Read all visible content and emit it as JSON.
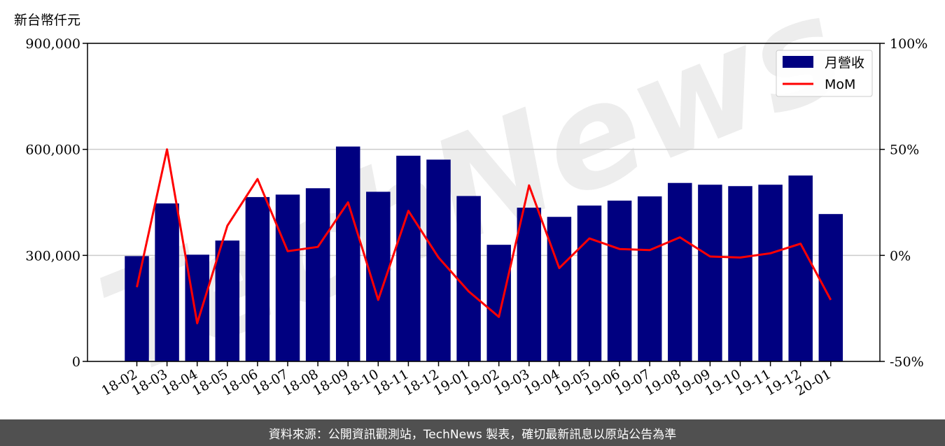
{
  "unit_label": "新台幣仟元",
  "footer_text": "資料來源：公開資訊觀測站，TechNews 製表，確切最新訊息以原站公告為準",
  "watermark_text": "TechNews",
  "colors": {
    "bar": "#000080",
    "line": "#ff0000",
    "footer_bg": "#505050"
  },
  "chart_data": {
    "type": "bar",
    "categories": [
      "18-02",
      "18-03",
      "18-04",
      "18-05",
      "18-06",
      "18-07",
      "18-08",
      "18-09",
      "18-10",
      "18-11",
      "18-12",
      "19-01",
      "19-02",
      "19-03",
      "19-04",
      "19-05",
      "19-06",
      "19-07",
      "19-08",
      "19-09",
      "19-10",
      "19-11",
      "19-12",
      "20-01"
    ],
    "series": [
      {
        "name": "月營收",
        "type": "bar",
        "axis": "left",
        "values": [
          298000,
          447000,
          302000,
          342000,
          465000,
          472000,
          490000,
          608000,
          480000,
          582000,
          571000,
          468000,
          330000,
          435000,
          409000,
          441000,
          455000,
          467000,
          505000,
          500000,
          496000,
          500000,
          526000,
          417000
        ]
      },
      {
        "name": "MoM",
        "type": "line",
        "axis": "right",
        "values": [
          -15,
          50,
          -32,
          14,
          36,
          2,
          4,
          25,
          -21,
          21,
          -1,
          -17,
          -29,
          33,
          -6,
          8,
          3,
          2.5,
          8.5,
          -0.5,
          -1,
          1,
          5.5,
          -21
        ]
      }
    ],
    "y_left": {
      "lim": [
        0,
        900000
      ],
      "ticks": [
        "0",
        "300,000",
        "600,000",
        "900,000"
      ]
    },
    "y_right": {
      "lim": [
        -50,
        100
      ],
      "ticks": [
        "-50%",
        "0%",
        "50%",
        "100%"
      ]
    },
    "grid": "horizontal",
    "legend_position": "top-right"
  }
}
